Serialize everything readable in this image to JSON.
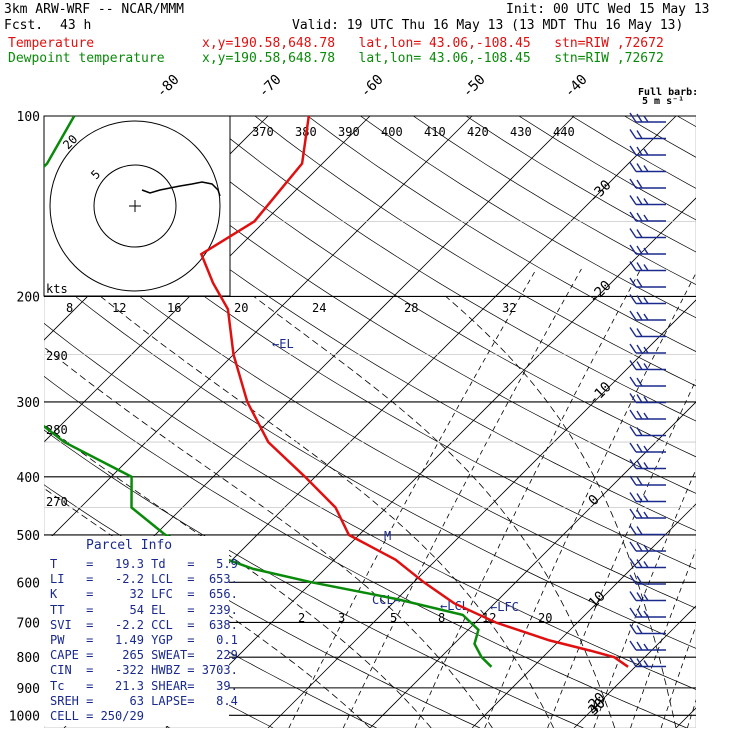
{
  "header": {
    "model": "3km ARW-WRF -- NCAR/MMM",
    "fcst_label": "Fcst.",
    "fcst_value": "43 h",
    "init": "Init: 00 UTC Wed 15 May 13",
    "valid": "Valid: 19 UTC Thu 16 May 13 (13 MDT Thu 16 May 13)",
    "temp_label": "Temperature",
    "dewp_label": "Dewpoint temperature",
    "temp_loc": "x,y=190.58,648.78   lat,lon= 43.06,-108.45   stn=RIW ,72672",
    "dewp_loc": "x,y=190.58,648.78   lat,lon= 43.06,-108.45   stn=RIW ,72672",
    "barb_note_1": "Full barb:",
    "barb_note_2": "5 m s⁻¹"
  },
  "colors": {
    "temperature": "#e01010",
    "dewpoint": "#0a8a0a",
    "annotation": "#1a2a8c",
    "isobar": "#000000",
    "background": "#ffffff"
  },
  "chart_data": {
    "type": "line",
    "title": "",
    "pressure_levels": [
      100,
      200,
      300,
      400,
      500,
      600,
      700,
      800,
      900,
      1000
    ],
    "temperature_axis_labels": [
      "-80",
      "-70",
      "-60",
      "-50",
      "-40",
      "-30",
      "-20",
      "-10",
      "0",
      "10",
      "20",
      "30",
      "40"
    ],
    "potential_temp_labels": [
      "290",
      "280",
      "270"
    ],
    "isentrope_top_labels": [
      "370",
      "380",
      "390",
      "400",
      "410",
      "420",
      "430",
      "440"
    ],
    "mixing_ratio_top_labels": [
      "8",
      "12",
      "16",
      "20",
      "24",
      "28",
      "32"
    ],
    "mixing_ratio_low_labels": [
      "2",
      "3",
      "5",
      "8",
      "12",
      "20"
    ],
    "hodograph": {
      "rings": [
        "5",
        "20"
      ],
      "units": "kts"
    },
    "level_markers": [
      "EL",
      "M",
      "CCL",
      "LCL",
      "LFC"
    ],
    "series": [
      {
        "name": "Temperature",
        "points": [
          [
            100,
            -66
          ],
          [
            120,
            -62
          ],
          [
            150,
            -61
          ],
          [
            170,
            -63
          ],
          [
            190,
            -59
          ],
          [
            210,
            -55
          ],
          [
            250,
            -50
          ],
          [
            300,
            -44
          ],
          [
            350,
            -38
          ],
          [
            400,
            -31
          ],
          [
            450,
            -25
          ],
          [
            500,
            -21
          ],
          [
            550,
            -14
          ],
          [
            600,
            -9
          ],
          [
            650,
            -4
          ],
          [
            700,
            2
          ],
          [
            750,
            9
          ],
          [
            780,
            14
          ],
          [
            800,
            17
          ],
          [
            830,
            19.3
          ]
        ]
      },
      {
        "name": "Dewpoint temperature",
        "points": [
          [
            100,
            -89
          ],
          [
            120,
            -87
          ],
          [
            150,
            -87
          ],
          [
            180,
            -87
          ],
          [
            200,
            -85
          ],
          [
            230,
            -82
          ],
          [
            260,
            -77
          ],
          [
            300,
            -67
          ],
          [
            350,
            -58
          ],
          [
            400,
            -48
          ],
          [
            450,
            -45
          ],
          [
            500,
            -39
          ],
          [
            530,
            -34
          ],
          [
            570,
            -27
          ],
          [
            600,
            -20
          ],
          [
            640,
            -10
          ],
          [
            680,
            -2
          ],
          [
            720,
            1
          ],
          [
            760,
            2
          ],
          [
            800,
            4
          ],
          [
            830,
            5.9
          ]
        ]
      }
    ]
  },
  "parcel_info": {
    "title": "Parcel Info",
    "rows": [
      [
        "T",
        "19.3",
        "Td",
        "5.9"
      ],
      [
        "LI",
        "-2.2",
        "LCL",
        "653."
      ],
      [
        "K",
        "32",
        "LFC",
        "656."
      ],
      [
        "TT",
        "54",
        "EL",
        "239."
      ],
      [
        "SVI",
        "-2.2",
        "CCL",
        "638."
      ],
      [
        "PW",
        "1.49",
        "YGP",
        "0.1"
      ],
      [
        "CAPE",
        "265",
        "SWEAT",
        "229"
      ],
      [
        "CIN",
        "-322",
        "HWBZ",
        "3703."
      ],
      [
        "Tc",
        "21.3",
        "SHEAR",
        "39."
      ],
      [
        "SREH",
        "63",
        "LAPSE",
        "8.4"
      ],
      [
        "CELL",
        "250/29",
        "",
        ""
      ]
    ]
  }
}
